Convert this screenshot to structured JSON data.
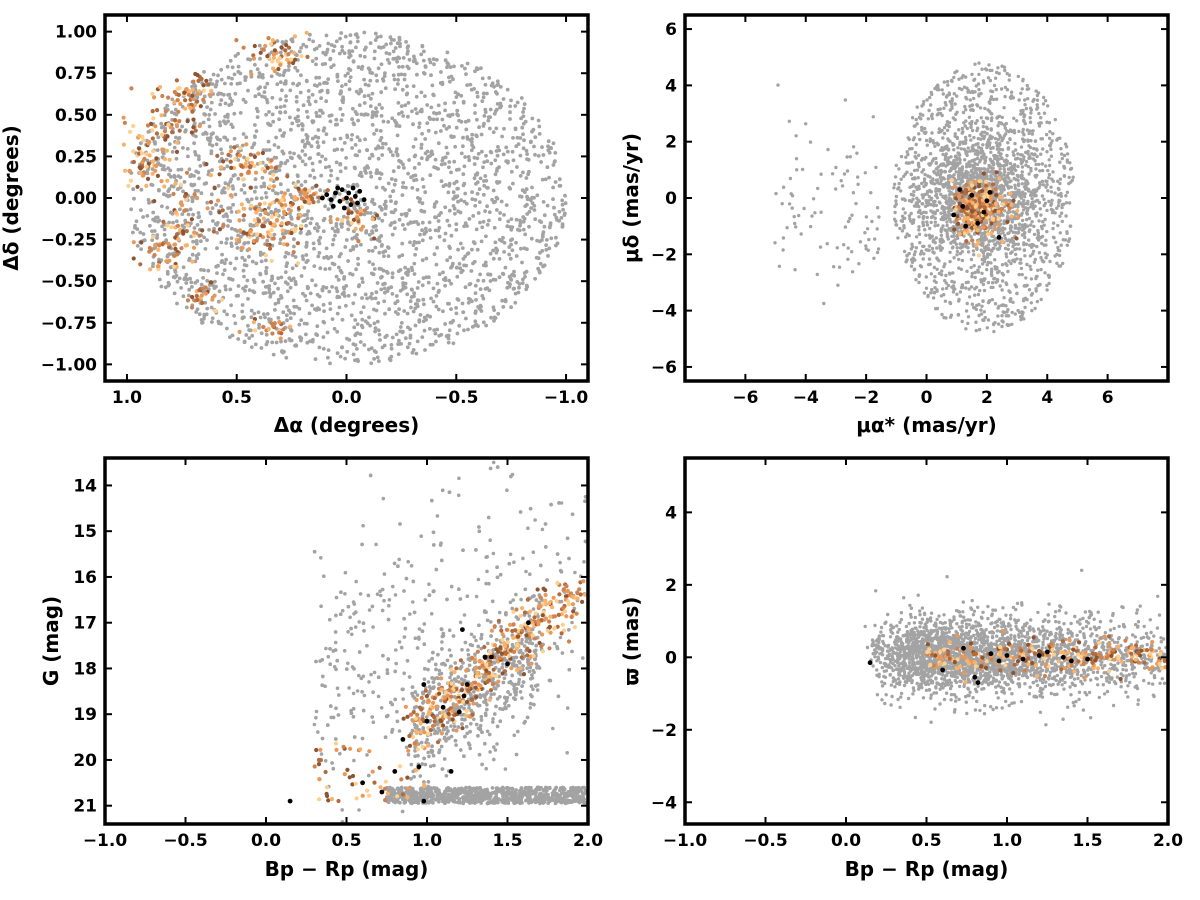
{
  "chart_data": [
    {
      "id": "sky",
      "type": "scatter",
      "xlabel": "Δα (degrees)",
      "ylabel": "Δδ (degrees)",
      "xlim": [
        1.1,
        -1.1
      ],
      "ylim": [
        -1.1,
        1.1
      ],
      "xticks": [
        "1.0",
        "0.5",
        "0.0",
        "−0.5",
        "−1.0"
      ],
      "xtick_values": [
        1.0,
        0.5,
        0.0,
        -0.5,
        -1.0
      ],
      "yticks": [
        "1.00",
        "0.75",
        "0.50",
        "0.25",
        "0.00",
        "−0.25",
        "−0.50",
        "−0.75",
        "−1.00"
      ],
      "ytick_values": [
        1.0,
        0.75,
        0.5,
        0.25,
        0.0,
        -0.25,
        -0.5,
        -0.75,
        -1.0
      ],
      "grid": false,
      "series": [
        {
          "values": [
            [
              0.02,
              0.05
            ],
            [
              -0.01,
              0.03
            ],
            [
              0.03,
              -0.02
            ],
            [
              -0.04,
              0.01
            ],
            [
              0.06,
              -0.05
            ],
            [
              -0.06,
              0.04
            ],
            [
              0.01,
              -0.06
            ],
            [
              0.09,
              0.02
            ],
            [
              -0.08,
              -0.01
            ],
            [
              0.04,
              0.06
            ],
            [
              -0.02,
              -0.04
            ],
            [
              0.0,
              0.0
            ],
            [
              0.07,
              -0.01
            ],
            [
              -0.05,
              -0.03
            ],
            [
              0.05,
              0.03
            ],
            [
              -0.03,
              0.06
            ],
            [
              0.11,
              0.0
            ]
          ]
        }
      ]
    },
    {
      "id": "pm",
      "type": "scatter",
      "xlabel": "μα* (mas/yr)",
      "ylabel": "μδ (mas/yr)",
      "xlim": [
        -8,
        8
      ],
      "ylim": [
        -6.5,
        6.5
      ],
      "xticks": [
        "−6",
        "−4",
        "−2",
        "0",
        "2",
        "4",
        "6"
      ],
      "xtick_values": [
        -6,
        -4,
        -2,
        0,
        2,
        4,
        6
      ],
      "yticks": [
        "6",
        "4",
        "2",
        "0",
        "−2",
        "−4",
        "−6"
      ],
      "ytick_values": [
        6,
        4,
        2,
        0,
        -2,
        -4,
        -6
      ],
      "grid": false,
      "series": [
        {
          "values": [
            [
              0.9,
              -0.6
            ],
            [
              1.2,
              -0.3
            ],
            [
              1.5,
              0.1
            ],
            [
              1.9,
              -0.5
            ],
            [
              2.1,
              0.2
            ],
            [
              1.3,
              -1.0
            ],
            [
              2.4,
              -1.4
            ],
            [
              1.7,
              -0.9
            ],
            [
              2.0,
              -0.1
            ],
            [
              1.1,
              0.3
            ]
          ]
        }
      ]
    },
    {
      "id": "cmd",
      "type": "scatter",
      "xlabel": "Bp − Rp (mag)",
      "ylabel": "G (mag)",
      "xlim": [
        -1.0,
        2.0
      ],
      "ylim": [
        21.4,
        13.4
      ],
      "xticks": [
        "−1.0",
        "−0.5",
        "0.0",
        "0.5",
        "1.0",
        "1.5",
        "2.0"
      ],
      "xtick_values": [
        -1.0,
        -0.5,
        0.0,
        0.5,
        1.0,
        1.5,
        2.0
      ],
      "yticks": [
        "21",
        "20",
        "19",
        "18",
        "17",
        "16",
        "15",
        "14"
      ],
      "ytick_values": [
        21,
        20,
        19,
        18,
        17,
        16,
        15,
        14
      ],
      "grid": false,
      "series": [
        {
          "values": [
            [
              0.15,
              20.9
            ],
            [
              0.6,
              20.5
            ],
            [
              0.72,
              20.7
            ],
            [
              0.8,
              20.25
            ],
            [
              0.95,
              20.15
            ],
            [
              0.85,
              19.55
            ],
            [
              1.0,
              19.15
            ],
            [
              1.1,
              18.85
            ],
            [
              1.2,
              18.95
            ],
            [
              1.23,
              18.6
            ],
            [
              0.98,
              18.35
            ],
            [
              1.25,
              18.35
            ],
            [
              1.36,
              17.75
            ],
            [
              1.4,
              17.75
            ],
            [
              1.5,
              17.9
            ],
            [
              1.63,
              17.0
            ],
            [
              1.22,
              17.15
            ],
            [
              1.15,
              20.25
            ],
            [
              0.98,
              20.9
            ]
          ]
        }
      ]
    },
    {
      "id": "plx",
      "type": "scatter",
      "xlabel": "Bp − Rp (mag)",
      "ylabel": "ϖ (mas)",
      "xlim": [
        -1.0,
        2.0
      ],
      "ylim": [
        -4.6,
        5.5
      ],
      "xticks": [
        "−1.0",
        "−0.5",
        "0.0",
        "0.5",
        "1.0",
        "1.5",
        "2.0"
      ],
      "xtick_values": [
        -1.0,
        -0.5,
        0.0,
        0.5,
        1.0,
        1.5,
        2.0
      ],
      "yticks": [
        "4",
        "2",
        "0",
        "−2",
        "−4"
      ],
      "ytick_values": [
        4,
        2,
        0,
        -2,
        -4
      ],
      "grid": false,
      "series": [
        {
          "values": [
            [
              0.15,
              -0.15
            ],
            [
              0.6,
              -0.35
            ],
            [
              0.73,
              0.25
            ],
            [
              0.8,
              -0.55
            ],
            [
              0.82,
              -0.7
            ],
            [
              0.95,
              -0.1
            ],
            [
              1.0,
              0.05
            ],
            [
              1.1,
              -0.05
            ],
            [
              1.2,
              0.05
            ],
            [
              1.25,
              0.15
            ],
            [
              1.35,
              0.0
            ],
            [
              1.4,
              -0.1
            ],
            [
              1.5,
              -0.05
            ],
            [
              0.9,
              0.1
            ]
          ]
        }
      ]
    }
  ],
  "colors": {
    "field": "#a3a3a3",
    "members": [
      "#ffcf8c",
      "#f8b26a",
      "#e89858",
      "#cf824f",
      "#b36a3e",
      "#8f5430"
    ],
    "core": "#000000"
  }
}
